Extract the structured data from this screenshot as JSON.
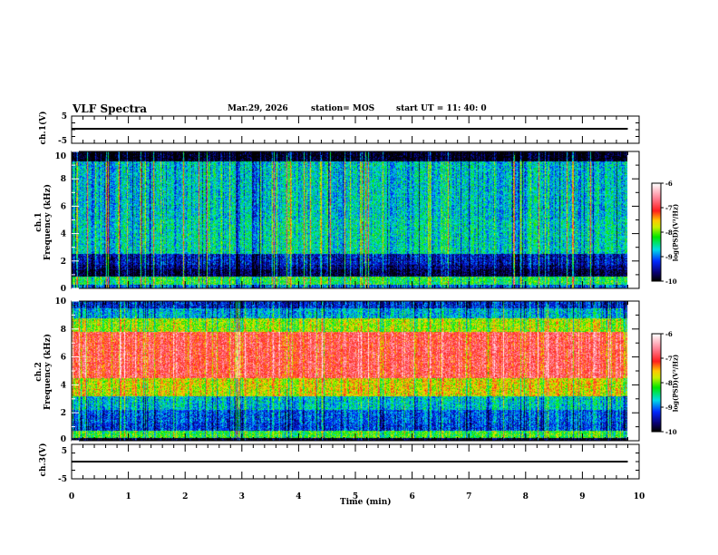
{
  "header": {
    "title": "VLF Spectra",
    "date": "Mar.29, 2026",
    "station": "station= MOS",
    "start": "start  UT =   11: 40: 0"
  },
  "chart_data": {
    "type": "heatmap",
    "title": "VLF Spectra",
    "xlabel": "Time  (min)",
    "xlim": [
      0,
      10
    ],
    "x_ticks": [
      "0",
      "1",
      "2",
      "3",
      "4",
      "5",
      "6",
      "7",
      "8",
      "9",
      "10"
    ],
    "data_end_min": 9.8,
    "panels": [
      {
        "name": "ch1-waveform",
        "ylabel": "ch.1(V)",
        "ylim": [
          -5,
          5
        ],
        "y_ticks": [
          "5",
          "-5"
        ],
        "trace_level": 0
      },
      {
        "name": "ch1-spectrogram",
        "ylabel": "ch.1\nFrequency (kHz)",
        "ylabel_top": "ch.1",
        "ylabel_bottom": "Frequency (kHz)",
        "ylim": [
          0,
          10
        ],
        "y_ticks": [
          "0",
          "2",
          "4",
          "6",
          "8",
          "10"
        ],
        "colorbar": {
          "label": "log(PSD)(V²/Hz)",
          "range": [
            -10,
            -6
          ],
          "ticks": [
            "-6",
            "-7",
            "-8",
            "-9",
            "-10"
          ]
        }
      },
      {
        "name": "ch2-spectrogram",
        "ylabel_top": "ch.2",
        "ylabel_bottom": "Frequency (kHz)",
        "ylim": [
          0,
          10
        ],
        "y_ticks": [
          "0",
          "2",
          "4",
          "6",
          "8",
          "10"
        ],
        "colorbar": {
          "label": "log(PSD)(V²/Hz)",
          "range": [
            -10,
            -6
          ],
          "ticks": [
            "-6",
            "-7",
            "-8",
            "-9",
            "-10"
          ]
        }
      },
      {
        "name": "ch3-waveform",
        "ylabel": "ch.3(V)",
        "ylim": [
          -5,
          5
        ],
        "y_ticks": [
          "5",
          "-5"
        ],
        "trace_level": 0
      }
    ]
  }
}
